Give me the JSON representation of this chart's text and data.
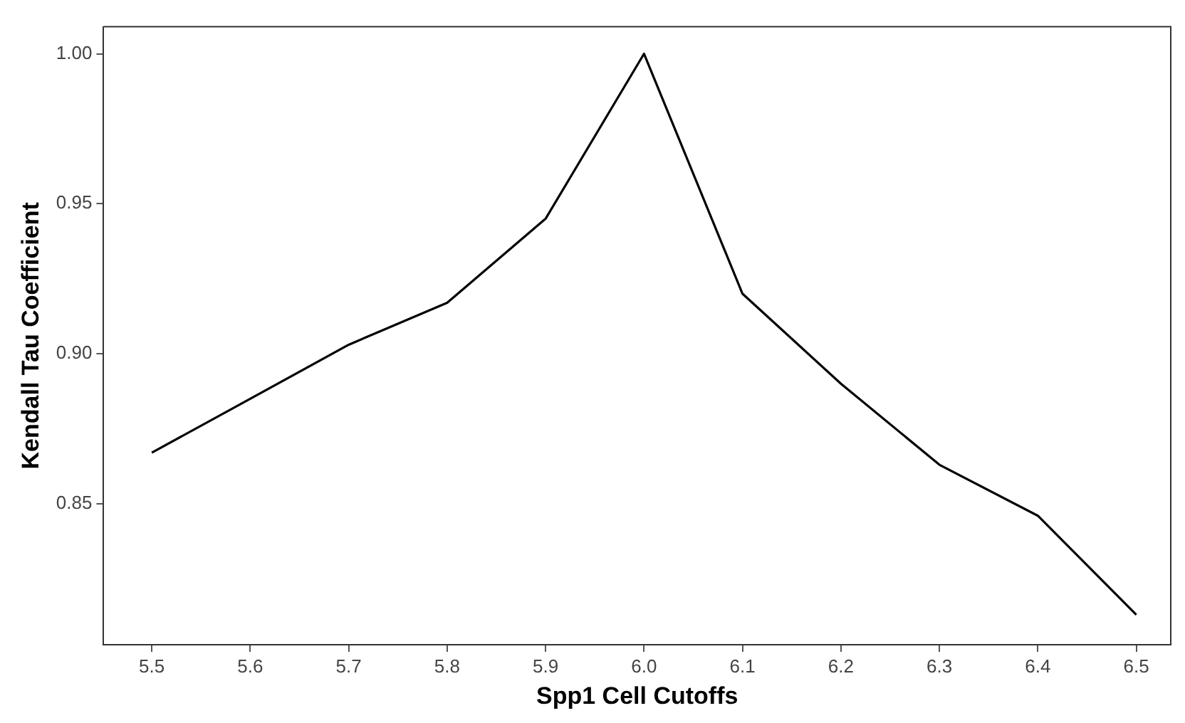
{
  "chart_data": {
    "type": "line",
    "xlabel": "Spp1 Cell Cutoffs",
    "ylabel": "Kendall Tau Coefficient",
    "x": [
      5.5,
      5.6,
      5.7,
      5.8,
      5.9,
      6.0,
      6.1,
      6.2,
      6.3,
      6.4,
      6.5
    ],
    "series": [
      {
        "color": "#000000",
        "values": [
          0.867,
          0.885,
          0.903,
          0.917,
          0.945,
          1.0,
          0.92,
          0.89,
          0.863,
          0.846,
          0.813
        ]
      }
    ],
    "xlim": [
      5.451,
      6.535
    ],
    "ylim": [
      0.803,
      1.009
    ],
    "xticks": [
      {
        "value": 5.5,
        "label": "5.5"
      },
      {
        "value": 5.6,
        "label": "5.6"
      },
      {
        "value": 5.7,
        "label": "5.7"
      },
      {
        "value": 5.8,
        "label": "5.8"
      },
      {
        "value": 5.9,
        "label": "5.9"
      },
      {
        "value": 6.0,
        "label": "6.0"
      },
      {
        "value": 6.1,
        "label": "6.1"
      },
      {
        "value": 6.2,
        "label": "6.2"
      },
      {
        "value": 6.3,
        "label": "6.3"
      },
      {
        "value": 6.4,
        "label": "6.4"
      },
      {
        "value": 6.5,
        "label": "6.5"
      }
    ],
    "yticks": [
      {
        "value": 0.85,
        "label": "0.85"
      },
      {
        "value": 0.9,
        "label": "0.90"
      },
      {
        "value": 0.95,
        "label": "0.95"
      },
      {
        "value": 1.0,
        "label": "1.00"
      }
    ],
    "grid": false,
    "legend": false,
    "marker": "none",
    "line_style": "solid"
  }
}
